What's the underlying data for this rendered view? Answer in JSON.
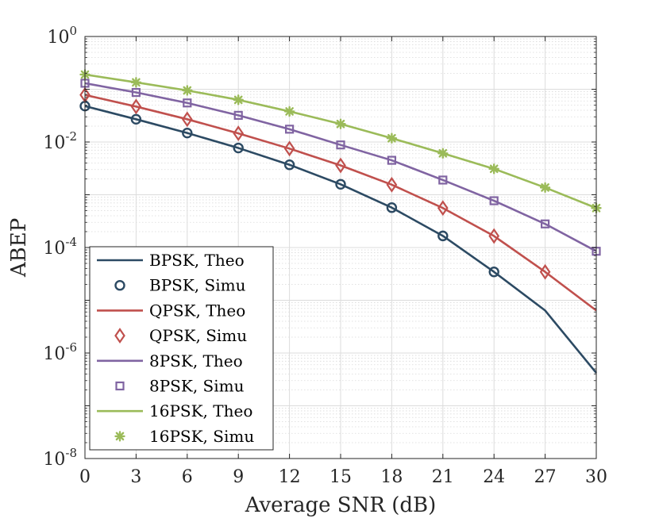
{
  "chart_data": {
    "type": "line",
    "title": "",
    "xlabel": "Average SNR (dB)",
    "ylabel": "ABEP",
    "xscale": "linear",
    "yscale": "log",
    "xlim": [
      0,
      30
    ],
    "ylim": [
      1e-08,
      1
    ],
    "x_ticks": [
      0,
      3,
      6,
      9,
      12,
      15,
      18,
      21,
      24,
      27,
      30
    ],
    "x_tick_labels": [
      "0",
      "3",
      "6",
      "9",
      "12",
      "15",
      "18",
      "21",
      "24",
      "27",
      "30"
    ],
    "y_ticks": [
      {
        "value": 1,
        "base": "10",
        "exp": "0"
      },
      {
        "value": 0.01,
        "base": "10",
        "exp": "-2"
      },
      {
        "value": 0.0001,
        "base": "10",
        "exp": "-4"
      },
      {
        "value": 1e-06,
        "base": "10",
        "exp": "-6"
      },
      {
        "value": 1e-08,
        "base": "10",
        "exp": "-8"
      }
    ],
    "grid": true,
    "legend_position": "bottom-left",
    "series": [
      {
        "name": "BPSK, Theo",
        "style": "line",
        "color": "#2c4a63",
        "x": [
          0,
          3,
          6,
          9,
          12,
          15,
          18,
          21,
          24,
          27,
          30
        ],
        "y": [
          0.048,
          0.027,
          0.0148,
          0.0077,
          0.0037,
          0.00158,
          0.00057,
          0.000166,
          3.45e-05,
          6.4e-06,
          4.2e-07
        ]
      },
      {
        "name": "BPSK, Simu",
        "style": "marker",
        "marker": "circle",
        "color": "#2c4a63",
        "x": [
          0,
          3,
          6,
          9,
          12,
          15,
          18,
          21,
          24
        ],
        "y": [
          0.048,
          0.027,
          0.0148,
          0.0077,
          0.0037,
          0.00158,
          0.00057,
          0.000166,
          3.45e-05
        ]
      },
      {
        "name": "QPSK, Theo",
        "style": "line",
        "color": "#c0504d",
        "x": [
          0,
          3,
          6,
          9,
          12,
          15,
          18,
          21,
          24,
          27,
          30
        ],
        "y": [
          0.078,
          0.047,
          0.027,
          0.0146,
          0.0075,
          0.0036,
          0.00155,
          0.00056,
          0.000165,
          3.45e-05,
          6.4e-06
        ]
      },
      {
        "name": "QPSK, Simu",
        "style": "marker",
        "marker": "diamond",
        "color": "#c0504d",
        "x": [
          0,
          3,
          6,
          9,
          12,
          15,
          18,
          21,
          24,
          27
        ],
        "y": [
          0.078,
          0.047,
          0.027,
          0.0146,
          0.0075,
          0.0036,
          0.00155,
          0.00056,
          0.000165,
          3.45e-05
        ]
      },
      {
        "name": "8PSK, Theo",
        "style": "line",
        "color": "#8064a2",
        "x": [
          0,
          3,
          6,
          9,
          12,
          15,
          18,
          21,
          24,
          27,
          30
        ],
        "y": [
          0.13,
          0.087,
          0.055,
          0.032,
          0.0175,
          0.0088,
          0.0045,
          0.0019,
          0.00077,
          0.00028,
          8.5e-05
        ]
      },
      {
        "name": "8PSK, Simu",
        "style": "marker",
        "marker": "square",
        "color": "#8064a2",
        "x": [
          0,
          3,
          6,
          9,
          12,
          15,
          18,
          21,
          24,
          27,
          30
        ],
        "y": [
          0.13,
          0.087,
          0.055,
          0.032,
          0.0175,
          0.0088,
          0.0045,
          0.0019,
          0.00077,
          0.00028,
          8.5e-05
        ]
      },
      {
        "name": "16PSK, Theo",
        "style": "line",
        "color": "#9bbb59",
        "x": [
          0,
          3,
          6,
          9,
          12,
          15,
          18,
          21,
          24,
          27,
          30
        ],
        "y": [
          0.19,
          0.135,
          0.095,
          0.063,
          0.038,
          0.022,
          0.0118,
          0.0061,
          0.0031,
          0.00137,
          0.00056
        ]
      },
      {
        "name": "16PSK, Simu",
        "style": "marker",
        "marker": "asterisk",
        "color": "#9bbb59",
        "x": [
          0,
          3,
          6,
          9,
          12,
          15,
          18,
          21,
          24,
          27,
          30
        ],
        "y": [
          0.19,
          0.135,
          0.095,
          0.063,
          0.038,
          0.022,
          0.0118,
          0.0061,
          0.0031,
          0.00137,
          0.00056
        ]
      }
    ]
  }
}
